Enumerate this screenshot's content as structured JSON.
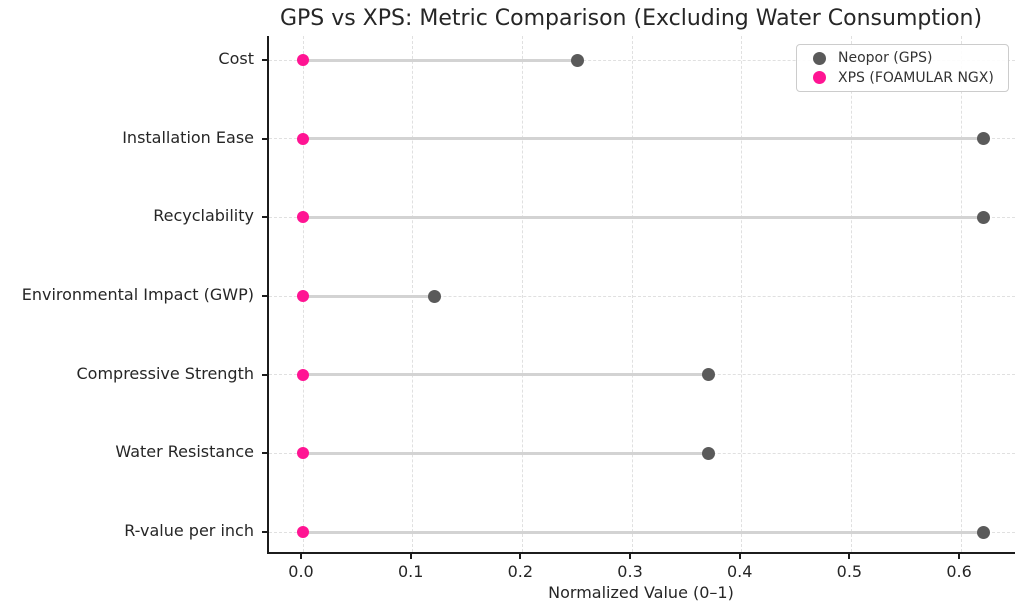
{
  "title": "GPS vs XPS: Metric Comparison (Excluding Water Consumption)",
  "chart_data": {
    "type": "scatter",
    "variant": "dumbbell-lollipop",
    "title": "GPS vs XPS: Metric Comparison (Excluding Water Consumption)",
    "xlabel": "Normalized Value (0–1)",
    "ylabel": "",
    "categories": [
      "Cost",
      "Installation Ease",
      "Recyclability",
      "Environmental Impact (GWP)",
      "Compressive Strength",
      "Water Resistance",
      "R-value per inch"
    ],
    "series": [
      {
        "name": "Neopor (GPS)",
        "color": "#5a5a5a",
        "marker": "circle",
        "values": [
          0.25,
          0.62,
          0.62,
          0.12,
          0.37,
          0.37,
          0.62
        ]
      },
      {
        "name": "XPS (FOAMULAR NGX)",
        "color": "#ff1493",
        "marker": "circle",
        "values": [
          0.0,
          0.0,
          0.0,
          0.0,
          0.0,
          0.0,
          0.0
        ]
      }
    ],
    "connector_color": "#d3d3d3",
    "xlim": [
      -0.031,
      0.651
    ],
    "xticks": [
      0.0,
      0.1,
      0.2,
      0.3,
      0.4,
      0.5,
      0.6
    ],
    "xtick_labels": [
      "0.0",
      "0.1",
      "0.2",
      "0.3",
      "0.4",
      "0.5",
      "0.6"
    ],
    "grid": true,
    "grid_style": "dashed",
    "legend_position": "upper right"
  },
  "legend": {
    "items": [
      {
        "label": "Neopor (GPS)",
        "color": "#5a5a5a"
      },
      {
        "label": "XPS (FOAMULAR NGX)",
        "color": "#ff1493"
      }
    ]
  }
}
